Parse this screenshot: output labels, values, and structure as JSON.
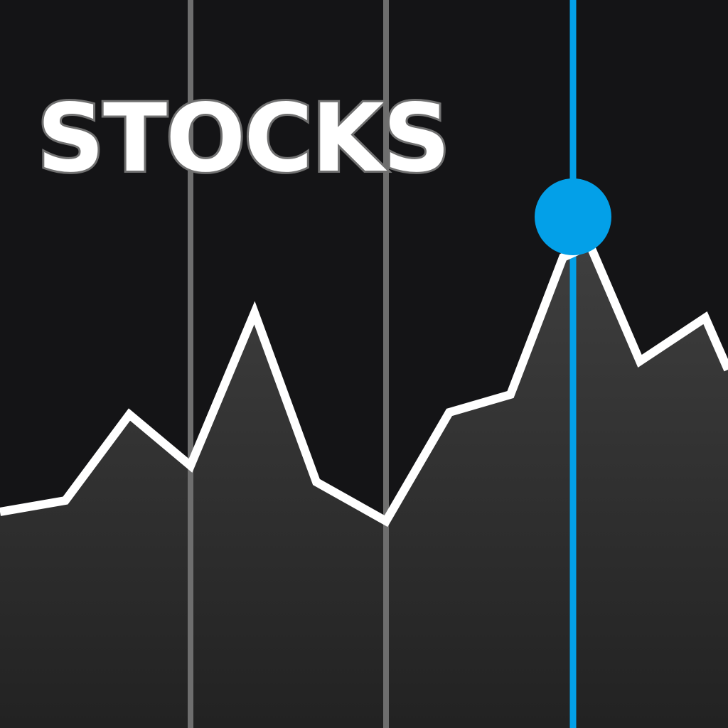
{
  "app": {
    "title": "STOCKS"
  },
  "colors": {
    "background": "#141416",
    "area_fill_top": "#404040",
    "area_fill_bottom": "#222222",
    "line": "#ffffff",
    "divider": "#6e6e6e",
    "highlight": "#03a0e8",
    "title_fill": "#ffffff",
    "title_stroke": "#707070"
  },
  "icons": {
    "cursor_marker": "circle-dot"
  }
}
